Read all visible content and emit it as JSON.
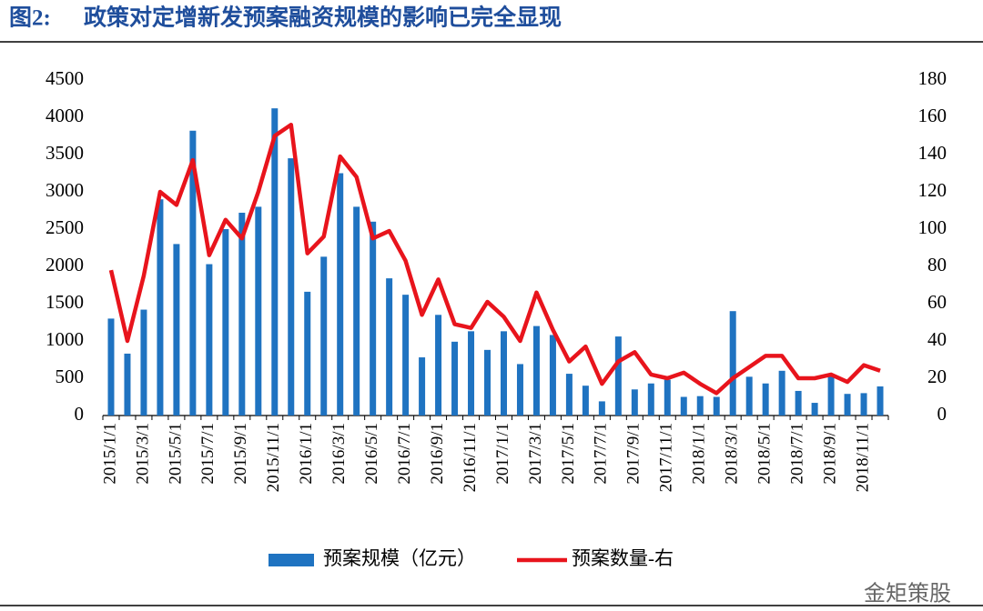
{
  "chart_data": {
    "type": "bar-line",
    "figure_label": "图2:",
    "title": "政策对定增新发预案融资规模的影响已完全显现",
    "categories": [
      "2015/1/1",
      null,
      "2015/3/1",
      null,
      "2015/5/1",
      null,
      "2015/7/1",
      null,
      "2015/9/1",
      null,
      "2015/11/1",
      null,
      "2016/1/1",
      null,
      "2016/3/1",
      null,
      "2016/5/1",
      null,
      "2016/7/1",
      null,
      "2016/9/1",
      null,
      "2016/11/1",
      null,
      "2017/1/1",
      null,
      "2017/3/1",
      null,
      "2017/5/1",
      null,
      "2017/7/1",
      null,
      "2017/9/1",
      null,
      "2017/11/1",
      null,
      "2018/1/1",
      null,
      "2018/3/1",
      null,
      "2018/5/1",
      null,
      "2018/7/1",
      null,
      "2018/9/1",
      null,
      "2018/11/1",
      null
    ],
    "series": [
      {
        "name": "预案规模（亿元）",
        "type": "bar",
        "color": "#1f73c1",
        "axis": "y",
        "values": [
          1300,
          830,
          1420,
          2900,
          2300,
          3820,
          2030,
          2500,
          2720,
          2800,
          4120,
          3450,
          1660,
          2130,
          3250,
          2800,
          2600,
          1840,
          1620,
          780,
          1350,
          990,
          1130,
          880,
          1130,
          690,
          1200,
          1080,
          560,
          400,
          190,
          1060,
          350,
          430,
          480,
          250,
          260,
          250,
          1400,
          520,
          430,
          600,
          330,
          170,
          530,
          290,
          300,
          390
        ]
      },
      {
        "name": "预案数量-右",
        "type": "line",
        "color": "#e8141c",
        "axis": "y2",
        "values": [
          78,
          40,
          75,
          120,
          113,
          137,
          86,
          105,
          95,
          120,
          150,
          156,
          87,
          96,
          139,
          128,
          95,
          99,
          83,
          54,
          73,
          49,
          47,
          61,
          53,
          40,
          66,
          46,
          29,
          37,
          17,
          29,
          34,
          22,
          20,
          23,
          17,
          12,
          20,
          26,
          32,
          32,
          20,
          20,
          22,
          18,
          27,
          24
        ]
      }
    ],
    "ylim": [
      0,
      4500
    ],
    "yticks": [
      0,
      500,
      1000,
      1500,
      2000,
      2500,
      3000,
      3500,
      4000,
      4500
    ],
    "y2lim": [
      0,
      180
    ],
    "y2ticks": [
      0,
      20,
      40,
      60,
      80,
      100,
      120,
      140,
      160,
      180
    ],
    "legend": "bottom",
    "annotations": [
      "金矩策股"
    ]
  }
}
